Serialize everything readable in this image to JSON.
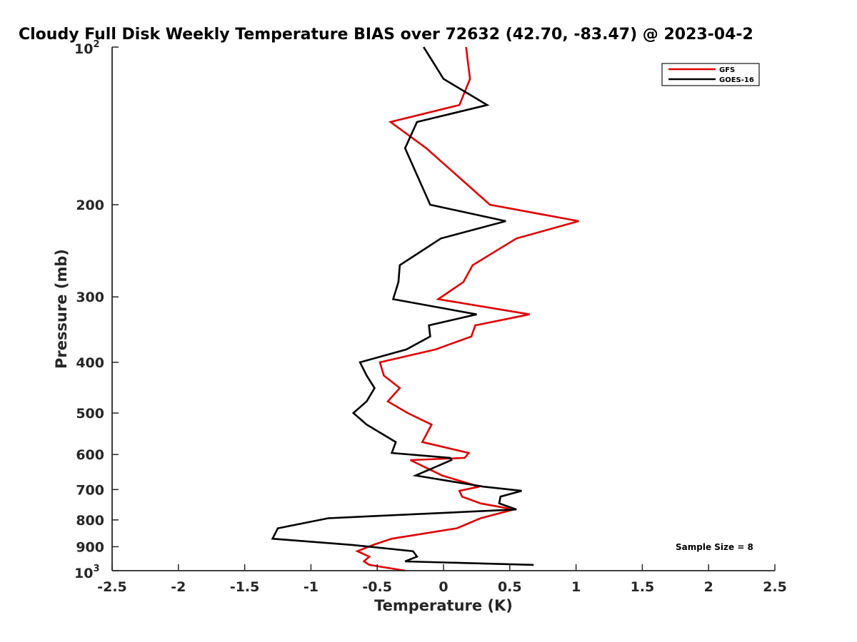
{
  "chart_data": {
    "type": "line",
    "title": "Cloudy Full Disk Weekly Temperature BIAS over 72632 (42.70, -83.47) @ 2023-04-2",
    "xlabel": "Temperature (K)",
    "ylabel": "Pressure (mb)",
    "xlim": [
      -2.5,
      2.5
    ],
    "ylim": [
      100,
      1000
    ],
    "yscale": "log",
    "yreversed": true,
    "xticks": [
      "-2.5",
      "-2",
      "-1.5",
      "-1",
      "-0.5",
      "0",
      "0.5",
      "1",
      "1.5",
      "2",
      "2.5"
    ],
    "xtick_values": [
      -2.5,
      -2,
      -1.5,
      -1,
      -0.5,
      0,
      0.5,
      1,
      1.5,
      2,
      2.5
    ],
    "yticks": [
      {
        "value": 200,
        "label": "200"
      },
      {
        "value": 300,
        "label": "300"
      },
      {
        "value": 400,
        "label": "400"
      },
      {
        "value": 500,
        "label": "500"
      },
      {
        "value": 600,
        "label": "600"
      },
      {
        "value": 700,
        "label": "700"
      },
      {
        "value": 800,
        "label": "800"
      },
      {
        "value": 900,
        "label": "900"
      }
    ],
    "ytick_power_top": {
      "value": 100,
      "base": "10",
      "exp": "2"
    },
    "ytick_power_bottom": {
      "value": 1000,
      "base": "10",
      "exp": "3"
    },
    "grid": false,
    "legend_position": "top-right",
    "annotation": "Sample Size = 8",
    "series": [
      {
        "name": "GFS",
        "color": "#e00000",
        "points": [
          [
            0.17,
            100
          ],
          [
            0.2,
            115
          ],
          [
            0.12,
            129
          ],
          [
            -0.4,
            139
          ],
          [
            -0.13,
            156
          ],
          [
            0.35,
            200
          ],
          [
            1.02,
            215
          ],
          [
            0.55,
            232
          ],
          [
            0.22,
            261
          ],
          [
            0.15,
            281
          ],
          [
            -0.04,
            303
          ],
          [
            0.65,
            324
          ],
          [
            0.24,
            340
          ],
          [
            0.21,
            357
          ],
          [
            -0.06,
            378
          ],
          [
            -0.48,
            400
          ],
          [
            -0.45,
            424
          ],
          [
            -0.33,
            448
          ],
          [
            -0.42,
            475
          ],
          [
            -0.27,
            500
          ],
          [
            -0.09,
            526
          ],
          [
            -0.16,
            568
          ],
          [
            0.19,
            596
          ],
          [
            0.16,
            609
          ],
          [
            -0.25,
            615
          ],
          [
            -0.01,
            658
          ],
          [
            0.27,
            691
          ],
          [
            0.12,
            704
          ],
          [
            0.14,
            722
          ],
          [
            0.28,
            744
          ],
          [
            0.53,
            764
          ],
          [
            0.28,
            794
          ],
          [
            0.1,
            830
          ],
          [
            -0.39,
            869
          ],
          [
            -0.53,
            893
          ],
          [
            -0.65,
            918
          ],
          [
            -0.56,
            940
          ],
          [
            -0.6,
            960
          ],
          [
            -0.56,
            975
          ],
          [
            -0.29,
            1000
          ]
        ]
      },
      {
        "name": "GOES-16",
        "color": "#000000",
        "points": [
          [
            -0.15,
            100
          ],
          [
            0.0,
            115
          ],
          [
            0.33,
            129
          ],
          [
            -0.2,
            139
          ],
          [
            -0.29,
            156
          ],
          [
            -0.1,
            200
          ],
          [
            0.47,
            215
          ],
          [
            -0.02,
            232
          ],
          [
            -0.33,
            261
          ],
          [
            -0.34,
            281
          ],
          [
            -0.38,
            303
          ],
          [
            0.25,
            324
          ],
          [
            -0.11,
            340
          ],
          [
            -0.1,
            357
          ],
          [
            -0.28,
            378
          ],
          [
            -0.63,
            400
          ],
          [
            -0.58,
            424
          ],
          [
            -0.52,
            448
          ],
          [
            -0.58,
            475
          ],
          [
            -0.68,
            500
          ],
          [
            -0.58,
            526
          ],
          [
            -0.36,
            568
          ],
          [
            -0.39,
            596
          ],
          [
            0.05,
            609
          ],
          [
            0.06,
            615
          ],
          [
            -0.21,
            658
          ],
          [
            0.3,
            691
          ],
          [
            0.59,
            704
          ],
          [
            0.43,
            722
          ],
          [
            0.42,
            744
          ],
          [
            0.55,
            764
          ],
          [
            -0.87,
            794
          ],
          [
            -1.25,
            830
          ],
          [
            -1.29,
            869
          ],
          [
            -0.69,
            893
          ],
          [
            -0.23,
            918
          ],
          [
            -0.2,
            940
          ],
          [
            -0.29,
            960
          ],
          [
            0.68,
            975
          ]
        ]
      }
    ]
  }
}
